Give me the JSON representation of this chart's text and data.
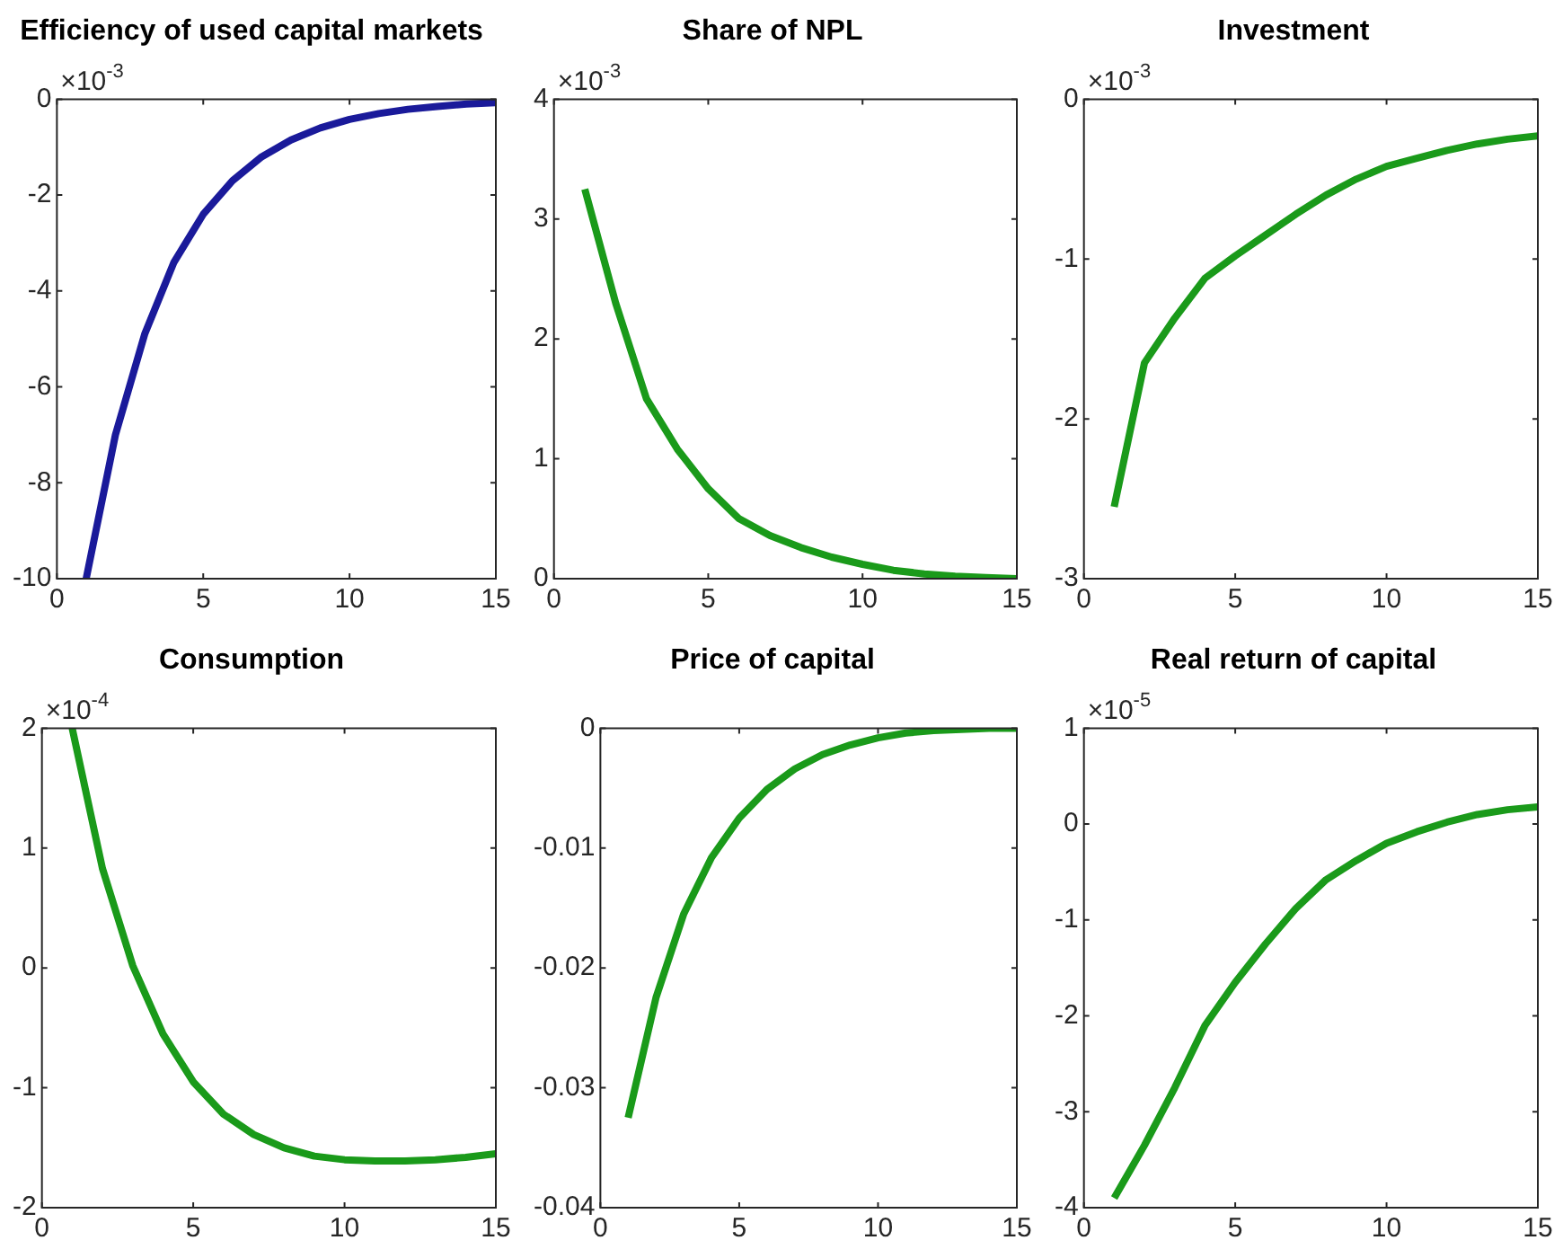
{
  "chart_data": [
    {
      "type": "line",
      "title": "Efficiency of used capital markets",
      "annotations": [
        "×10$^{-3}$"
      ],
      "x": [
        1,
        2,
        3,
        4,
        5,
        6,
        7,
        8,
        9,
        10,
        11,
        12,
        13,
        14,
        15
      ],
      "xlim": [
        0,
        15
      ],
      "xticks": [
        0,
        5,
        10,
        15
      ],
      "ylim": [
        -10,
        0
      ],
      "yticks": [
        -10,
        -8,
        -6,
        -4,
        -2,
        0
      ],
      "grid": false,
      "legend": false,
      "marker": "none",
      "series": [
        {
          "color": "#1a1a9a",
          "values": [
            -10,
            -7,
            -4.9,
            -3.4,
            -2.4,
            -1.7,
            -1.2,
            -0.85,
            -0.6,
            -0.42,
            -0.3,
            -0.21,
            -0.15,
            -0.1,
            -0.07
          ]
        }
      ]
    },
    {
      "type": "line",
      "title": "Share of NPL",
      "annotations": [
        "×10$^{-3}$"
      ],
      "x": [
        1,
        2,
        3,
        4,
        5,
        6,
        7,
        8,
        9,
        10,
        11,
        12,
        13,
        14,
        15
      ],
      "xlim": [
        0,
        15
      ],
      "xticks": [
        0,
        5,
        10,
        15
      ],
      "ylim": [
        0,
        4
      ],
      "yticks": [
        0,
        1,
        2,
        3,
        4
      ],
      "grid": false,
      "legend": false,
      "marker": "none",
      "series": [
        {
          "color": "#1a9a1a",
          "values": [
            3.25,
            2.3,
            1.5,
            1.08,
            0.75,
            0.5,
            0.36,
            0.26,
            0.18,
            0.12,
            0.07,
            0.04,
            0.02,
            0.01,
            0
          ]
        }
      ]
    },
    {
      "type": "line",
      "title": "Investment",
      "annotations": [
        "×10$^{-3}$"
      ],
      "x": [
        1,
        2,
        3,
        4,
        5,
        6,
        7,
        8,
        9,
        10,
        11,
        12,
        13,
        14,
        15
      ],
      "xlim": [
        0,
        15
      ],
      "xticks": [
        0,
        5,
        10,
        15
      ],
      "ylim": [
        -3,
        0
      ],
      "yticks": [
        -3,
        -2,
        -1,
        0
      ],
      "grid": false,
      "legend": false,
      "marker": "none",
      "series": [
        {
          "color": "#1a9a1a",
          "values": [
            -2.55,
            -1.65,
            -1.37,
            -1.12,
            -0.98,
            -0.85,
            -0.72,
            -0.6,
            -0.5,
            -0.42,
            -0.37,
            -0.32,
            -0.28,
            -0.25,
            -0.23
          ]
        }
      ]
    },
    {
      "type": "line",
      "title": "Consumption",
      "annotations": [
        "×10$^{-4}$"
      ],
      "x": [
        1,
        2,
        3,
        4,
        5,
        6,
        7,
        8,
        9,
        10,
        11,
        12,
        13,
        14,
        15
      ],
      "xlim": [
        0,
        15
      ],
      "xticks": [
        0,
        5,
        10,
        15
      ],
      "ylim": [
        -2,
        2
      ],
      "yticks": [
        -2,
        -1,
        0,
        1,
        2
      ],
      "grid": false,
      "legend": false,
      "marker": "none",
      "series": [
        {
          "color": "#1a9a1a",
          "values": [
            2.0,
            0.83,
            0.02,
            -0.55,
            -0.95,
            -1.22,
            -1.39,
            -1.5,
            -1.57,
            -1.6,
            -1.61,
            -1.61,
            -1.6,
            -1.58,
            -1.55
          ]
        }
      ]
    },
    {
      "type": "line",
      "title": "Price of capital",
      "x": [
        1,
        2,
        3,
        4,
        5,
        6,
        7,
        8,
        9,
        10,
        11,
        12,
        13,
        14,
        15
      ],
      "xlim": [
        0,
        15
      ],
      "xticks": [
        0,
        5,
        10,
        15
      ],
      "ylim": [
        -0.04,
        0
      ],
      "yticks": [
        -0.04,
        -0.03,
        -0.02,
        -0.01,
        0
      ],
      "grid": false,
      "legend": false,
      "marker": "none",
      "series": [
        {
          "color": "#1a9a1a",
          "values": [
            -0.0325,
            -0.0225,
            -0.0155,
            -0.0108,
            -0.0075,
            -0.0051,
            -0.0034,
            -0.0022,
            -0.0014,
            -0.0008,
            -0.0004,
            -0.0002,
            -0.0001,
            0,
            0
          ]
        }
      ]
    },
    {
      "type": "line",
      "title": "Real return of capital",
      "annotations": [
        "×10$^{-5}$"
      ],
      "x": [
        1,
        2,
        3,
        4,
        5,
        6,
        7,
        8,
        9,
        10,
        11,
        12,
        13,
        14,
        15
      ],
      "xlim": [
        0,
        15
      ],
      "xticks": [
        0,
        5,
        10,
        15
      ],
      "ylim": [
        -4,
        1
      ],
      "yticks": [
        -4,
        -3,
        -2,
        -1,
        0,
        1
      ],
      "grid": false,
      "legend": false,
      "marker": "none",
      "series": [
        {
          "color": "#1a9a1a",
          "values": [
            -3.9,
            -3.35,
            -2.75,
            -2.1,
            -1.65,
            -1.25,
            -0.88,
            -0.58,
            -0.38,
            -0.2,
            -0.08,
            0.02,
            0.1,
            0.15,
            0.18
          ]
        }
      ]
    }
  ]
}
